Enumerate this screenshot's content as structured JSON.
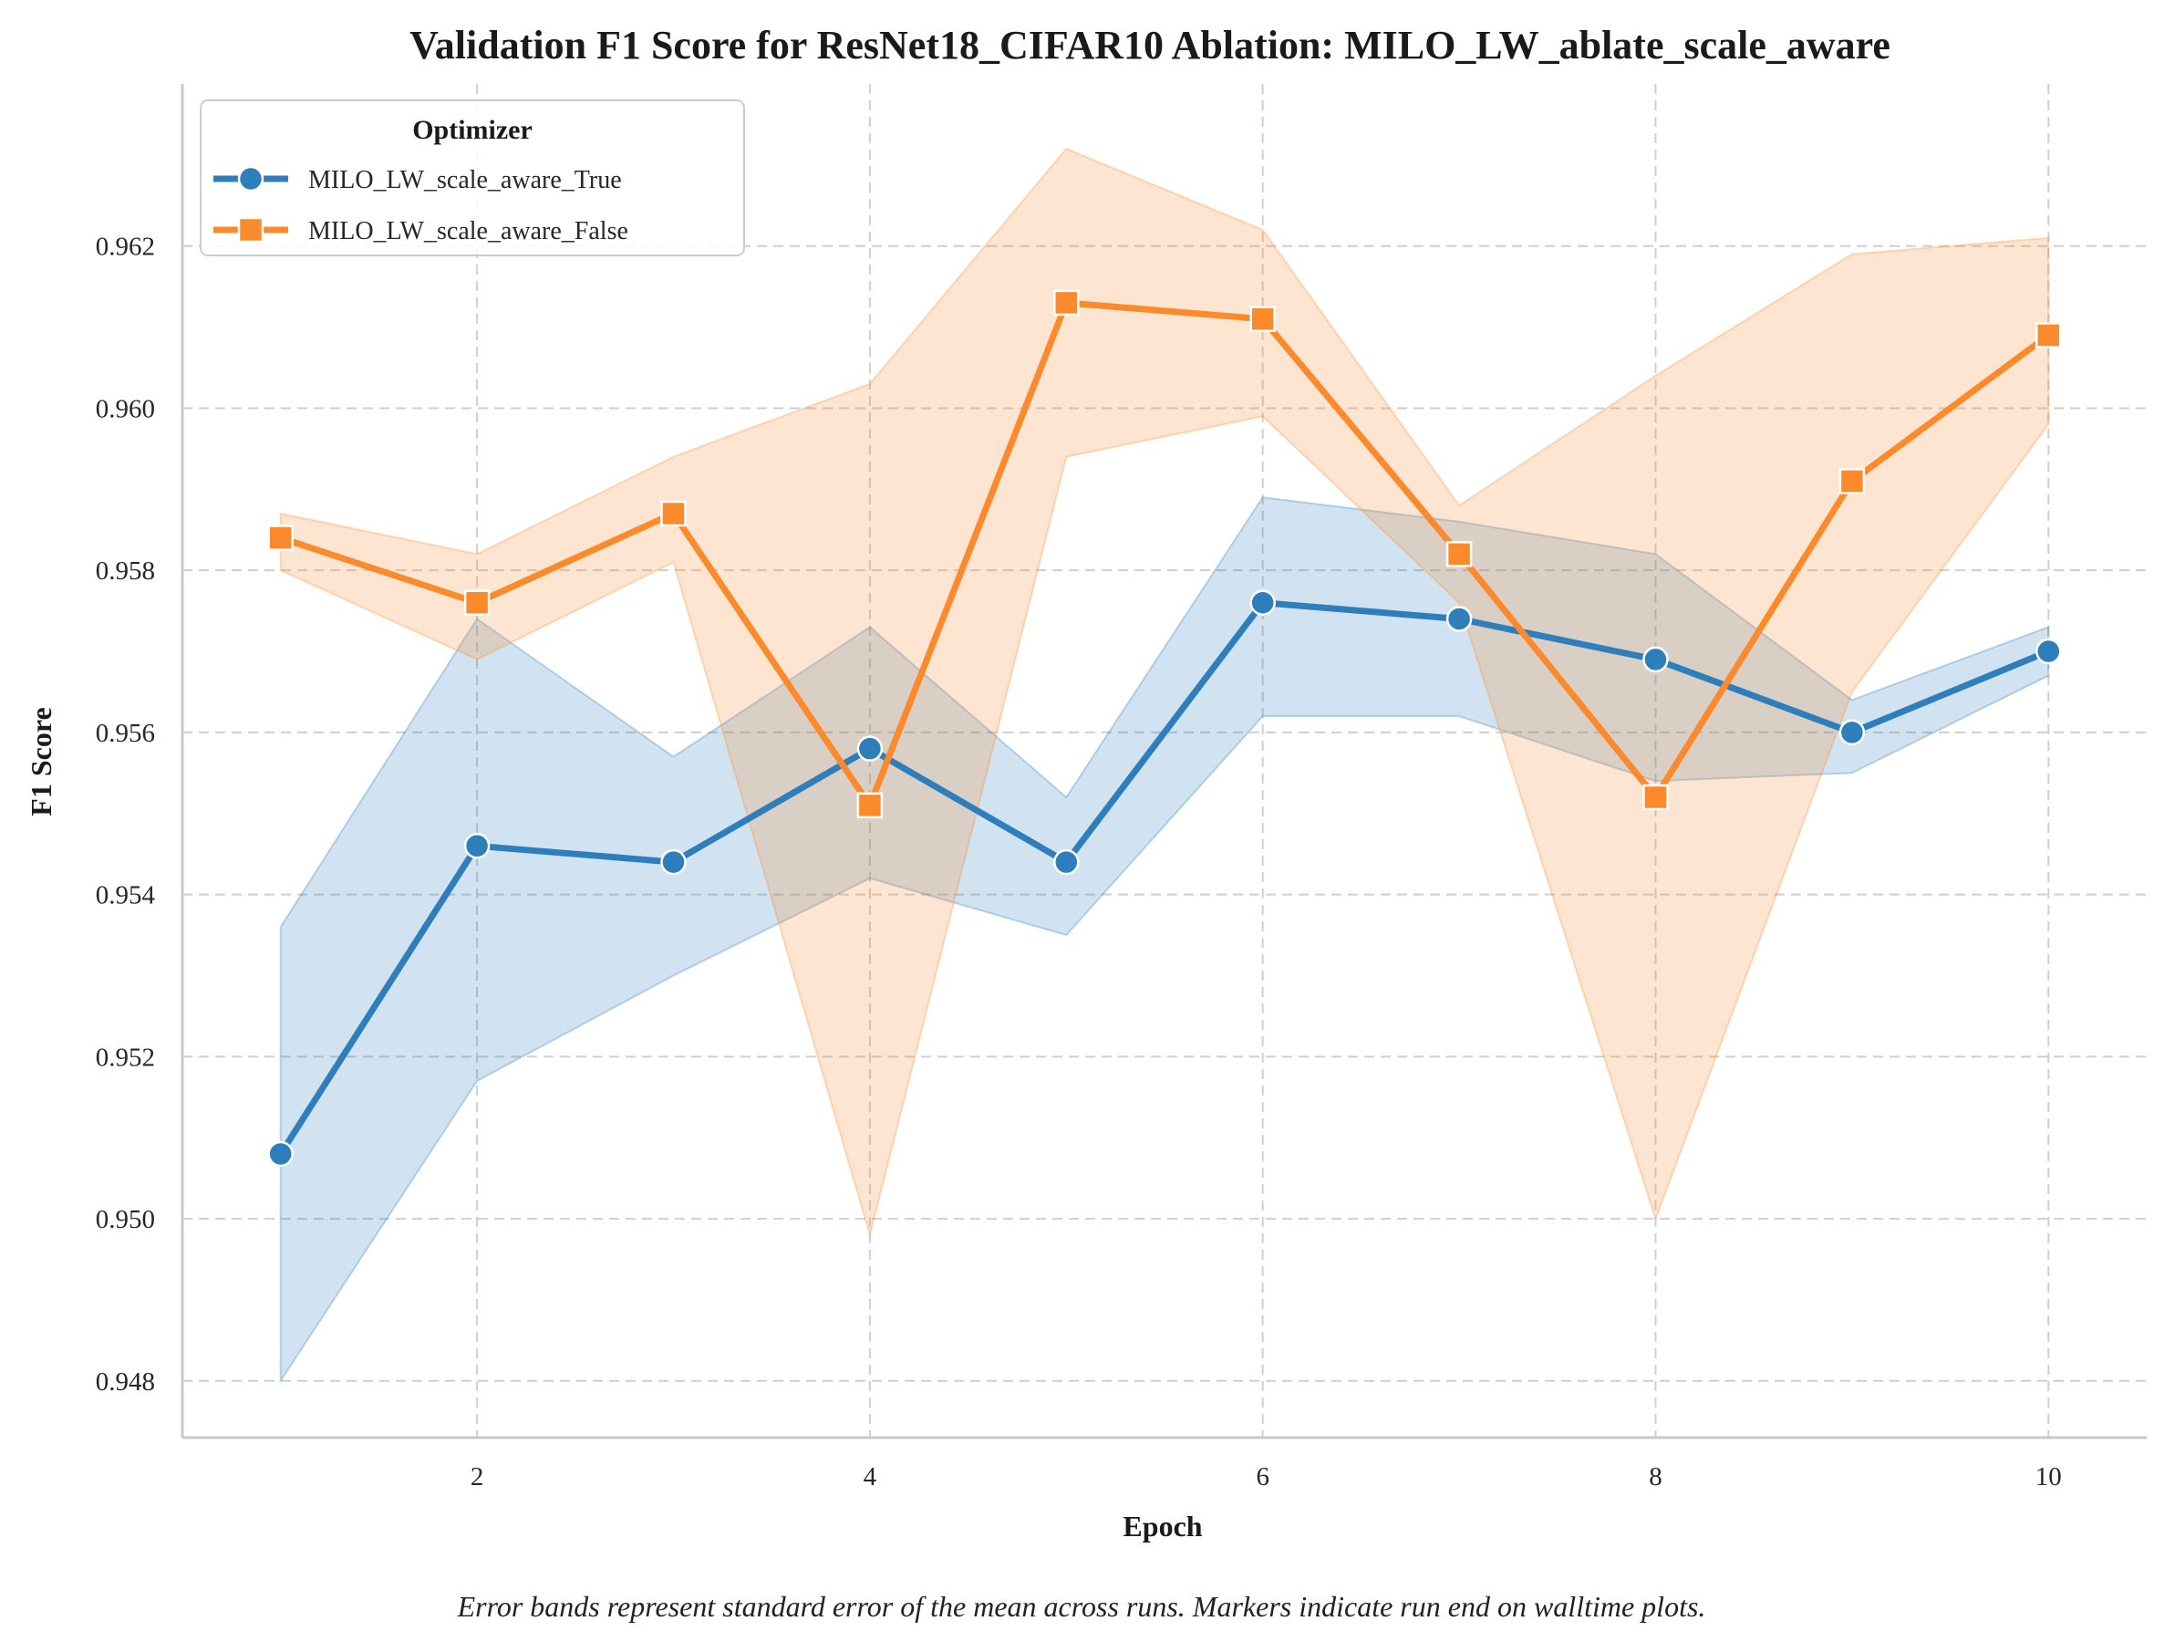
{
  "chart_data": {
    "type": "line",
    "title": "Validation F1 Score for ResNet18_CIFAR10 Ablation: MILO_LW_ablate_scale_aware",
    "xlabel": "Epoch",
    "ylabel": "F1 Score",
    "xlim": [
      0.5,
      10.5
    ],
    "ylim": [
      0.9473,
      0.964
    ],
    "xticks": [
      2,
      4,
      6,
      8,
      10
    ],
    "yticks": [
      0.948,
      0.95,
      0.952,
      0.954,
      0.956,
      0.958,
      0.96,
      0.962
    ],
    "ytick_labels": [
      "0.948",
      "0.950",
      "0.952",
      "0.954",
      "0.956",
      "0.958",
      "0.960",
      "0.962"
    ],
    "grid": true,
    "legend": {
      "title": "Optimizer",
      "position": "upper-left"
    },
    "caption": "Error bands represent standard error of the mean across runs. Markers indicate run end on walltime plots.",
    "x": [
      1,
      2,
      3,
      4,
      5,
      6,
      7,
      8,
      9,
      10
    ],
    "series": [
      {
        "name": "MILO_LW_scale_aware_True",
        "color": "#2f7ebc",
        "marker": "circle",
        "values": [
          0.9508,
          0.9546,
          0.9544,
          0.9558,
          0.9544,
          0.9576,
          0.9574,
          0.9569,
          0.956,
          0.957
        ],
        "lower": [
          0.948,
          0.9517,
          0.953,
          0.9542,
          0.9535,
          0.9562,
          0.9562,
          0.9554,
          0.9555,
          0.9567
        ],
        "upper": [
          0.9536,
          0.9574,
          0.9557,
          0.9573,
          0.9552,
          0.9589,
          0.9586,
          0.9582,
          0.9564,
          0.9573
        ]
      },
      {
        "name": "MILO_LW_scale_aware_False",
        "color": "#fb8a2c",
        "marker": "square",
        "values": [
          0.9584,
          0.9576,
          0.9587,
          0.9551,
          0.9613,
          0.9611,
          0.9582,
          0.9552,
          0.9591,
          0.9609
        ],
        "lower": [
          0.958,
          0.9569,
          0.9581,
          0.9498,
          0.9594,
          0.9599,
          0.9576,
          0.95,
          0.9565,
          0.9598
        ],
        "upper": [
          0.9587,
          0.9582,
          0.9594,
          0.9603,
          0.9632,
          0.9622,
          0.9588,
          0.9604,
          0.9619,
          0.9621
        ]
      }
    ]
  }
}
